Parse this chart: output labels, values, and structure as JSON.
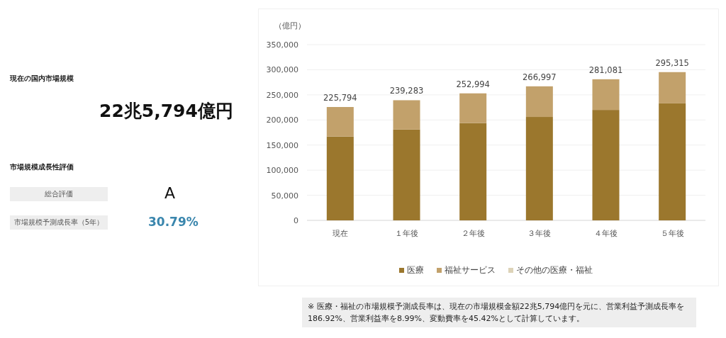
{
  "chart_data": [
    {
      "type": "other",
      "title": "現在の国内市場規模",
      "annotations": [
        "22兆5,794億円",
        "市場規模成長性評価",
        "総合評価",
        "A",
        "市場規模予測成長率（5年）",
        "30.79%"
      ]
    },
    {
      "type": "bar",
      "stacked": true,
      "ylabel": "（億円）",
      "categories": [
        "現在",
        "１年後",
        "２年後",
        "３年後",
        "４年後",
        "５年後"
      ],
      "series": [
        {
          "name": "医療",
          "color": "#9b772d",
          "values": [
            167000,
            181000,
            194000,
            206000,
            220000,
            233000
          ]
        },
        {
          "name": "福祉サービス",
          "color": "#c2a16b",
          "values": [
            58794,
            58283,
            58994,
            60997,
            61081,
            62315
          ]
        },
        {
          "name": "その他の医療・福祉",
          "color": "#ddd3b8",
          "values": [
            0,
            0,
            0,
            0,
            0,
            0
          ]
        }
      ],
      "totals": [
        "225,794",
        "239,283",
        "252,994",
        "266,997",
        "281,081",
        "295,315"
      ],
      "ylim": [
        0,
        350000
      ],
      "yticks": [
        0,
        {
          "value": 50000,
          "label": "50,000"
        },
        {
          "value": 100000,
          "label": "100,000"
        },
        {
          "value": 150000,
          "label": "150,000"
        },
        {
          "value": 200000,
          "label": "200,000"
        },
        {
          "value": 250000,
          "label": "250,000"
        },
        {
          "value": 300000,
          "label": "300,000"
        },
        {
          "value": 350000,
          "label": "350,000"
        }
      ],
      "grid": "y",
      "legend": "bottom",
      "annotations": [
        "※ 医療・福祉の市場規模予測成長率は、現在の市場規模金額22兆5,794億円を元に、営業利益予測成長率を186.92%、営業利益率を8.99%、変動費率を45.42%として計算しています。"
      ]
    }
  ]
}
